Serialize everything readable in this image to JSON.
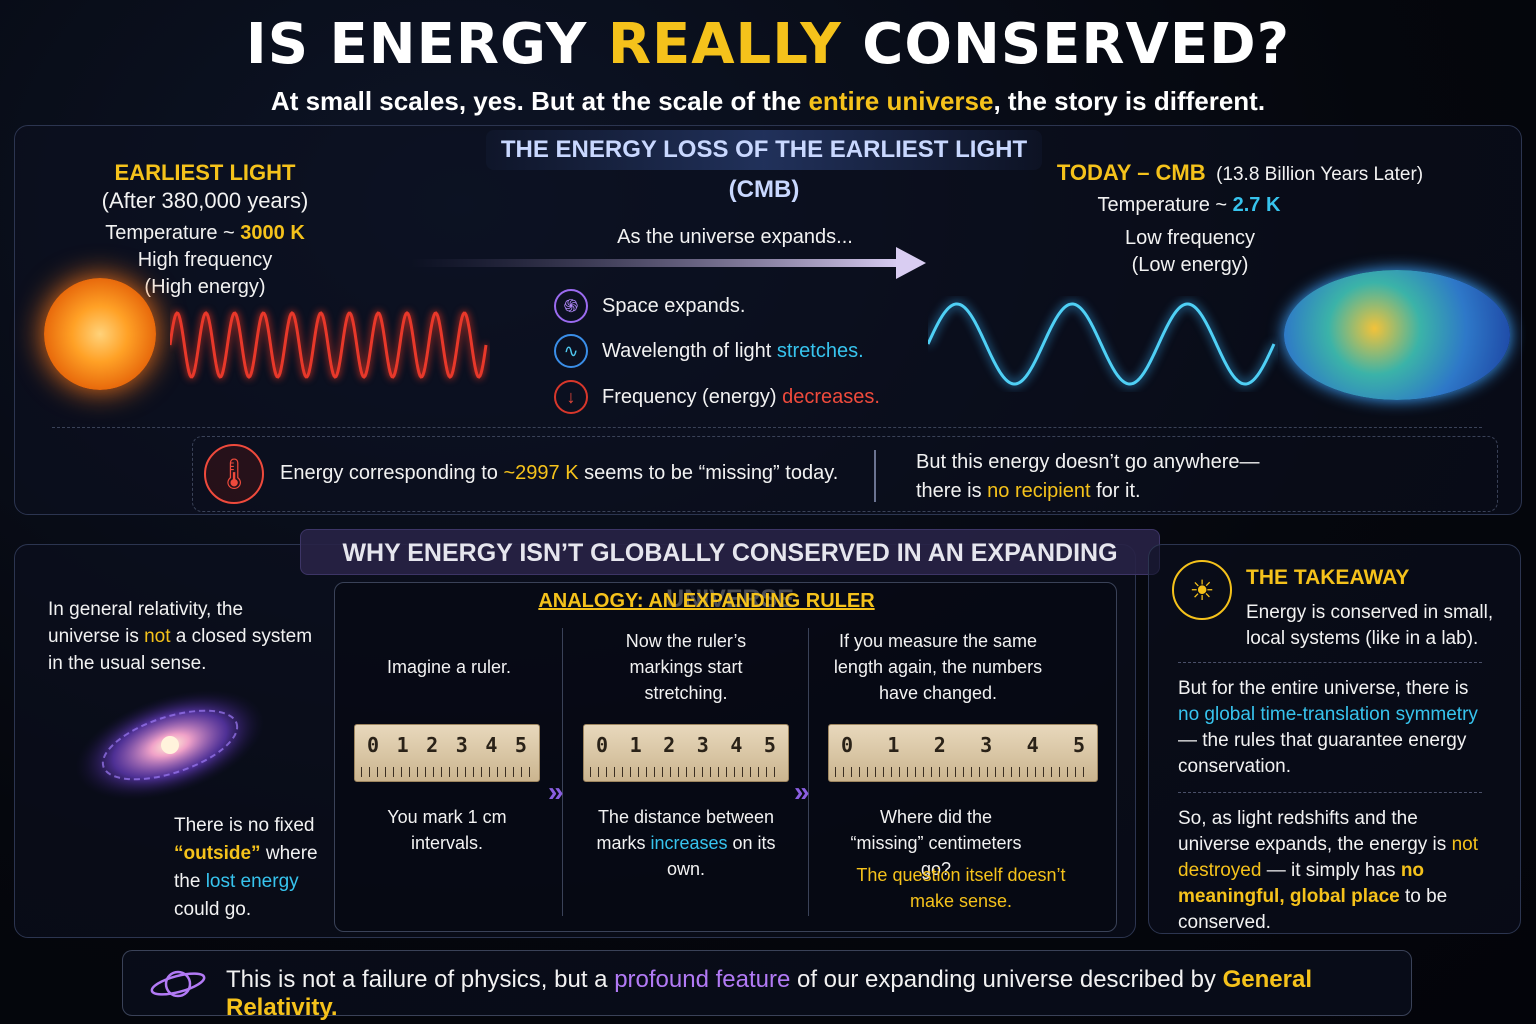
{
  "header": {
    "title_part1": "IS ENERGY ",
    "title_highlight": "REALLY",
    "title_part2": " CONSERVED?",
    "subtitle_part1": "At small scales, yes. But at the scale of the ",
    "subtitle_highlight": "entire universe",
    "subtitle_part2": ", the story is different."
  },
  "cmb_section": {
    "banner": "THE ENERGY LOSS OF THE EARLIEST LIGHT (CMB)",
    "earliest": {
      "heading": "EARLIEST LIGHT",
      "time": "(After 380,000 years)",
      "temp_label": "Temperature ~ ",
      "temp_value": "3000 K",
      "freq": "High frequency",
      "energy": "(High energy)"
    },
    "today": {
      "heading": "TODAY – CMB",
      "time": "(13.8 Billion Years Later)",
      "temp_label": "Temperature ~ ",
      "temp_value": "2.7 K",
      "freq": "Low frequency",
      "energy": "(Low energy)"
    },
    "arrow_label": "As the universe expands...",
    "points": [
      {
        "text": "Space expands.",
        "highlight": "",
        "icon": "spiral-icon"
      },
      {
        "text": "Wavelength of light ",
        "highlight": "stretches.",
        "icon": "wave-icon"
      },
      {
        "text": "Frequency (energy) ",
        "highlight": "decreases.",
        "icon": "down-arrow-icon"
      }
    ],
    "missing_part1": "Energy corresponding to ",
    "missing_value": "~2997 K",
    "missing_part2": " seems to be “missing” today.",
    "anywhere_line1": "But this energy doesn’t go anywhere—",
    "anywhere_part1": "there is ",
    "anywhere_highlight": "no recipient",
    "anywhere_part2": " for it."
  },
  "why_section": {
    "banner": "WHY ENERGY ISN’T GLOBALLY CONSERVED IN AN EXPANDING UNIVERSE",
    "gr_part1": "In general relativity, the universe is ",
    "gr_highlight": "not",
    "gr_part2": " a closed system in the usual sense.",
    "outside_part1": "There is no fixed ",
    "outside_highlight": "“outside”",
    "outside_part2": " where the ",
    "outside_highlight2": "lost energy",
    "outside_part3": " could go.",
    "analogy_title": "ANALOGY: AN EXPANDING RULER",
    "col1_top": "Imagine a ruler.",
    "col1_bottom": "You mark 1 cm intervals.",
    "col2_top": "Now the ruler’s markings start stretching.",
    "col2_bottom_part1": "The distance between marks ",
    "col2_bottom_highlight": "increases",
    "col2_bottom_part2": " on its own.",
    "col3_top": "If you measure the same length again, the numbers have changed.",
    "col3_bottom": "Where did the “missing” centimeters go?",
    "col3_answer": "The question itself doesn’t make sense.",
    "ruler_marks": [
      "0",
      "1",
      "2",
      "3",
      "4",
      "5"
    ]
  },
  "takeaway": {
    "heading": "THE TAKEAWAY",
    "p1": "Energy is conserved in small, local systems (like in a lab).",
    "p2_part1": "But for the entire universe, there is ",
    "p2_highlight": "no global time-translation symmetry",
    "p2_part2": " — the rules that guarantee energy conservation.",
    "p3_part1": "So, as light redshifts and the universe expands, the energy is ",
    "p3_highlight": "not destroyed",
    "p3_part2": " — it simply has ",
    "p3_highlight2": "no meaningful, global place",
    "p3_part3": " to be conserved."
  },
  "footer": {
    "part1": "This is not a failure of physics, but a ",
    "highlight": "profound feature",
    "part2": " of our expanding universe described by ",
    "highlight2": "General Relativity."
  },
  "colors": {
    "accent_yellow": "#f5c21b",
    "accent_cyan": "#37c4ee",
    "accent_red": "#ef4a3c",
    "accent_purple": "#b27af5"
  }
}
